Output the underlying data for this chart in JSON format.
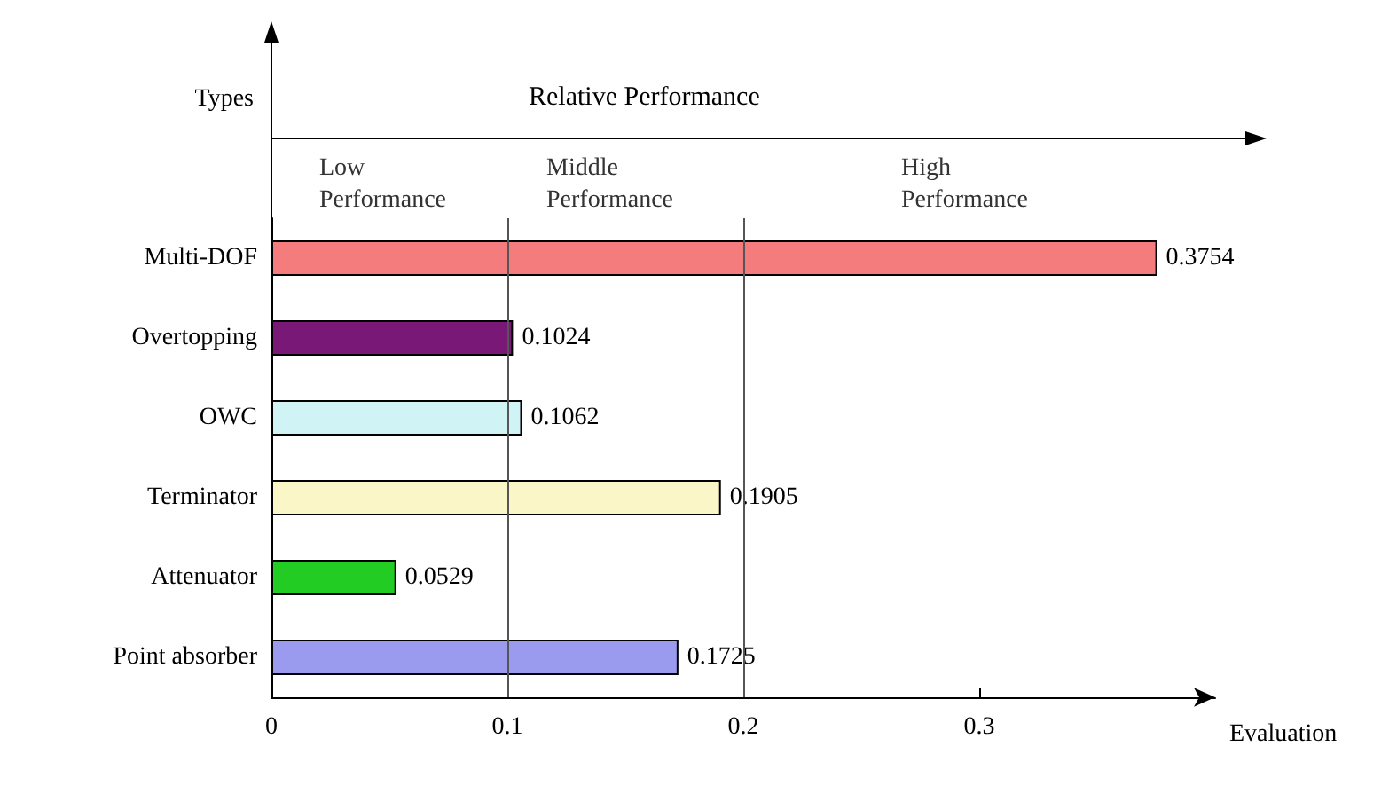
{
  "chart_data": {
    "type": "bar",
    "orientation": "horizontal",
    "ylabel": "Types",
    "xlabel": "Evaluation",
    "annotations": [
      "Relative Performance",
      "Low\nPerformance",
      "Middle\nPerformance",
      "High\nPerformance"
    ],
    "categories": [
      "Multi-DOF",
      "Overtopping",
      "OWC",
      "Terminator",
      "Attenuator",
      "Point absorber"
    ],
    "values": [
      0.3754,
      0.1024,
      0.1062,
      0.1905,
      0.0529,
      0.1725
    ],
    "colors": [
      "#f47c7c",
      "#7a1878",
      "#d0f4f6",
      "#fbf6c8",
      "#22cc22",
      "#9a9aee"
    ],
    "data_labels": true,
    "xlim": [
      0,
      0.4
    ],
    "xticks": [
      0,
      0.1,
      0.2,
      0.3
    ],
    "ref_lines": [
      {
        "axis": "x",
        "value": 0.1
      },
      {
        "axis": "x",
        "value": 0.2
      }
    ],
    "grid": false
  }
}
